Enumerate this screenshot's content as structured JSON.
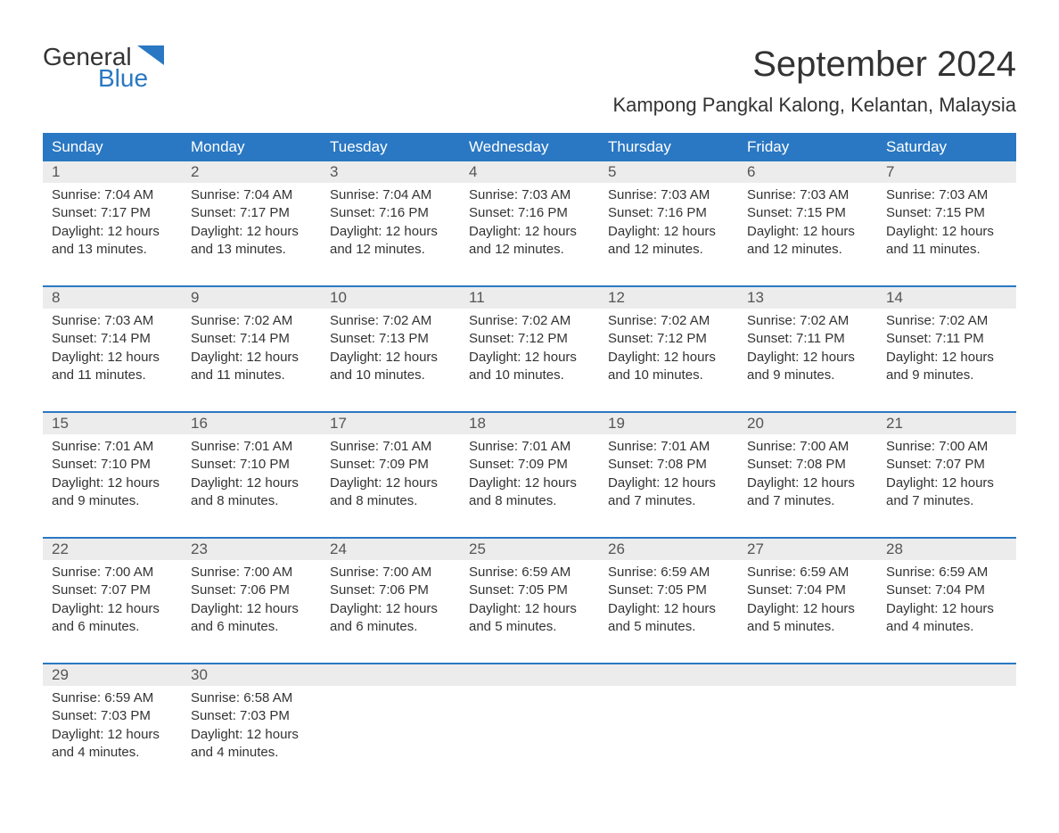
{
  "logo": {
    "line1": "General",
    "line2": "Blue"
  },
  "title": "September 2024",
  "location": "Kampong Pangkal Kalong, Kelantan, Malaysia",
  "colors": {
    "header_bg": "#2a78c3",
    "header_text": "#ffffff",
    "daynum_bg": "#ececec",
    "daynum_text": "#555555",
    "body_text": "#333333",
    "page_bg": "#ffffff",
    "logo_blue": "#2a78c3"
  },
  "font": {
    "family": "Arial",
    "title_size_pt": 30,
    "location_size_pt": 17,
    "header_size_pt": 13,
    "body_size_pt": 11
  },
  "weekdays": [
    "Sunday",
    "Monday",
    "Tuesday",
    "Wednesday",
    "Thursday",
    "Friday",
    "Saturday"
  ],
  "weeks": [
    [
      {
        "n": "1",
        "sunrise": "7:04 AM",
        "sunset": "7:17 PM",
        "daylight": "12 hours and 13 minutes."
      },
      {
        "n": "2",
        "sunrise": "7:04 AM",
        "sunset": "7:17 PM",
        "daylight": "12 hours and 13 minutes."
      },
      {
        "n": "3",
        "sunrise": "7:04 AM",
        "sunset": "7:16 PM",
        "daylight": "12 hours and 12 minutes."
      },
      {
        "n": "4",
        "sunrise": "7:03 AM",
        "sunset": "7:16 PM",
        "daylight": "12 hours and 12 minutes."
      },
      {
        "n": "5",
        "sunrise": "7:03 AM",
        "sunset": "7:16 PM",
        "daylight": "12 hours and 12 minutes."
      },
      {
        "n": "6",
        "sunrise": "7:03 AM",
        "sunset": "7:15 PM",
        "daylight": "12 hours and 12 minutes."
      },
      {
        "n": "7",
        "sunrise": "7:03 AM",
        "sunset": "7:15 PM",
        "daylight": "12 hours and 11 minutes."
      }
    ],
    [
      {
        "n": "8",
        "sunrise": "7:03 AM",
        "sunset": "7:14 PM",
        "daylight": "12 hours and 11 minutes."
      },
      {
        "n": "9",
        "sunrise": "7:02 AM",
        "sunset": "7:14 PM",
        "daylight": "12 hours and 11 minutes."
      },
      {
        "n": "10",
        "sunrise": "7:02 AM",
        "sunset": "7:13 PM",
        "daylight": "12 hours and 10 minutes."
      },
      {
        "n": "11",
        "sunrise": "7:02 AM",
        "sunset": "7:12 PM",
        "daylight": "12 hours and 10 minutes."
      },
      {
        "n": "12",
        "sunrise": "7:02 AM",
        "sunset": "7:12 PM",
        "daylight": "12 hours and 10 minutes."
      },
      {
        "n": "13",
        "sunrise": "7:02 AM",
        "sunset": "7:11 PM",
        "daylight": "12 hours and 9 minutes."
      },
      {
        "n": "14",
        "sunrise": "7:02 AM",
        "sunset": "7:11 PM",
        "daylight": "12 hours and 9 minutes."
      }
    ],
    [
      {
        "n": "15",
        "sunrise": "7:01 AM",
        "sunset": "7:10 PM",
        "daylight": "12 hours and 9 minutes."
      },
      {
        "n": "16",
        "sunrise": "7:01 AM",
        "sunset": "7:10 PM",
        "daylight": "12 hours and 8 minutes."
      },
      {
        "n": "17",
        "sunrise": "7:01 AM",
        "sunset": "7:09 PM",
        "daylight": "12 hours and 8 minutes."
      },
      {
        "n": "18",
        "sunrise": "7:01 AM",
        "sunset": "7:09 PM",
        "daylight": "12 hours and 8 minutes."
      },
      {
        "n": "19",
        "sunrise": "7:01 AM",
        "sunset": "7:08 PM",
        "daylight": "12 hours and 7 minutes."
      },
      {
        "n": "20",
        "sunrise": "7:00 AM",
        "sunset": "7:08 PM",
        "daylight": "12 hours and 7 minutes."
      },
      {
        "n": "21",
        "sunrise": "7:00 AM",
        "sunset": "7:07 PM",
        "daylight": "12 hours and 7 minutes."
      }
    ],
    [
      {
        "n": "22",
        "sunrise": "7:00 AM",
        "sunset": "7:07 PM",
        "daylight": "12 hours and 6 minutes."
      },
      {
        "n": "23",
        "sunrise": "7:00 AM",
        "sunset": "7:06 PM",
        "daylight": "12 hours and 6 minutes."
      },
      {
        "n": "24",
        "sunrise": "7:00 AM",
        "sunset": "7:06 PM",
        "daylight": "12 hours and 6 minutes."
      },
      {
        "n": "25",
        "sunrise": "6:59 AM",
        "sunset": "7:05 PM",
        "daylight": "12 hours and 5 minutes."
      },
      {
        "n": "26",
        "sunrise": "6:59 AM",
        "sunset": "7:05 PM",
        "daylight": "12 hours and 5 minutes."
      },
      {
        "n": "27",
        "sunrise": "6:59 AM",
        "sunset": "7:04 PM",
        "daylight": "12 hours and 5 minutes."
      },
      {
        "n": "28",
        "sunrise": "6:59 AM",
        "sunset": "7:04 PM",
        "daylight": "12 hours and 4 minutes."
      }
    ],
    [
      {
        "n": "29",
        "sunrise": "6:59 AM",
        "sunset": "7:03 PM",
        "daylight": "12 hours and 4 minutes."
      },
      {
        "n": "30",
        "sunrise": "6:58 AM",
        "sunset": "7:03 PM",
        "daylight": "12 hours and 4 minutes."
      },
      null,
      null,
      null,
      null,
      null
    ]
  ],
  "labels": {
    "sunrise": "Sunrise:",
    "sunset": "Sunset:",
    "daylight": "Daylight:"
  }
}
